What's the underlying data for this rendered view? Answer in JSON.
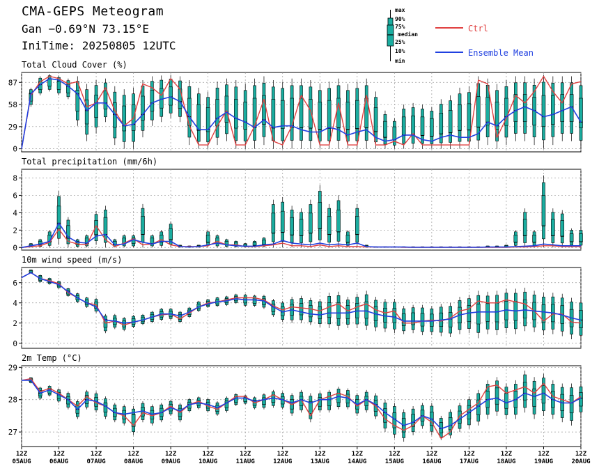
{
  "header": {
    "title": "CMA-GEPS Meteogram",
    "location": "Gan −0.69°N 73.15°E",
    "init_time": "IniTime: 20250805 12UTC"
  },
  "legend": {
    "box_labels": [
      "max",
      "90%",
      "75%",
      "median",
      "25%",
      "10%",
      "min"
    ],
    "ctrl_label": "Ctrl",
    "mean_label": "Ensemble Mean",
    "ctrl_color": "#e04040",
    "mean_color": "#2040e0",
    "box_color": "#1aada0"
  },
  "chart_data": [
    {
      "type": "line",
      "title": "Total Cloud Cover (%)",
      "yticks": [
        0,
        29,
        58,
        87
      ],
      "ylim": [
        -4,
        100
      ],
      "x": [
        "05-12Z",
        "05-18Z",
        "06-00Z",
        "06-06Z",
        "06-12Z",
        "06-18Z",
        "07-00Z",
        "07-06Z",
        "07-12Z",
        "07-18Z",
        "08-00Z",
        "08-06Z",
        "08-12Z",
        "08-18Z",
        "09-00Z",
        "09-06Z",
        "09-12Z",
        "09-18Z",
        "10-00Z",
        "10-06Z",
        "10-12Z",
        "10-18Z",
        "11-00Z",
        "11-06Z",
        "11-12Z",
        "11-18Z",
        "12-00Z",
        "12-06Z",
        "12-12Z",
        "12-18Z",
        "13-00Z",
        "13-06Z",
        "13-12Z",
        "13-18Z",
        "14-00Z",
        "14-06Z",
        "14-12Z",
        "14-18Z",
        "15-00Z",
        "15-06Z",
        "15-12Z",
        "15-18Z",
        "16-00Z",
        "16-06Z",
        "16-12Z",
        "16-18Z",
        "17-00Z",
        "17-06Z",
        "17-12Z",
        "17-18Z",
        "18-00Z",
        "18-06Z",
        "18-12Z",
        "18-18Z",
        "19-00Z",
        "19-06Z",
        "19-12Z",
        "19-18Z",
        "20-00Z",
        "20-06Z",
        "20-12Z"
      ],
      "series": [
        {
          "name": "Ctrl",
          "values": [
            0,
            70,
            88,
            95,
            92,
            85,
            88,
            55,
            60,
            80,
            50,
            30,
            40,
            85,
            80,
            70,
            92,
            78,
            30,
            5,
            5,
            30,
            50,
            5,
            5,
            30,
            65,
            10,
            5,
            30,
            70,
            50,
            5,
            5,
            60,
            5,
            5,
            70,
            5,
            5,
            10,
            5,
            20,
            5,
            5,
            5,
            5,
            5,
            5,
            90,
            85,
            15,
            40,
            70,
            60,
            75,
            95,
            75,
            60,
            85,
            88
          ]
        },
        {
          "name": "Ensemble Mean",
          "values": [
            0,
            72,
            84,
            92,
            90,
            82,
            72,
            50,
            60,
            60,
            45,
            30,
            32,
            45,
            60,
            65,
            68,
            62,
            42,
            25,
            25,
            40,
            48,
            40,
            35,
            28,
            38,
            28,
            30,
            30,
            25,
            22,
            22,
            28,
            25,
            18,
            22,
            25,
            15,
            10,
            12,
            18,
            18,
            12,
            10,
            15,
            18,
            15,
            15,
            20,
            35,
            30,
            42,
            50,
            55,
            50,
            42,
            45,
            50,
            55,
            35
          ]
        }
      ],
      "box_mins": [
        0,
        55,
        70,
        75,
        70,
        65,
        30,
        10,
        20,
        35,
        5,
        0,
        0,
        15,
        30,
        35,
        40,
        35,
        5,
        0,
        0,
        5,
        10,
        0,
        0,
        0,
        5,
        0,
        0,
        0,
        0,
        0,
        0,
        0,
        0,
        0,
        0,
        0,
        0,
        0,
        0,
        0,
        0,
        0,
        0,
        0,
        0,
        0,
        0,
        0,
        5,
        0,
        5,
        10,
        10,
        5,
        0,
        5,
        10,
        10,
        0
      ],
      "box_maxs": [
        0,
        80,
        95,
        98,
        96,
        92,
        95,
        85,
        90,
        92,
        82,
        78,
        80,
        90,
        95,
        96,
        97,
        95,
        90,
        80,
        75,
        88,
        92,
        90,
        85,
        92,
        95,
        90,
        88,
        92,
        92,
        90,
        85,
        88,
        92,
        85,
        88,
        92,
        75,
        50,
        40,
        58,
        60,
        58,
        55,
        65,
        70,
        80,
        82,
        95,
        92,
        85,
        90,
        95,
        95,
        92,
        97,
        95,
        95,
        95,
        92
      ]
    },
    {
      "type": "line",
      "title": "Total precipitation (mm/6h)",
      "yticks": [
        0,
        2,
        4,
        6,
        8
      ],
      "ylim": [
        -0.3,
        9.0
      ],
      "series": [
        {
          "name": "Ctrl",
          "values": [
            0,
            0.1,
            0.2,
            0.6,
            2.1,
            0.7,
            0.4,
            0.3,
            2.5,
            0.9,
            0.1,
            0.5,
            1.0,
            0.3,
            0.4,
            0.9,
            0.3,
            0.1,
            0.1,
            0.1,
            0.2,
            0.7,
            0.3,
            0.3,
            0.1,
            0.1,
            0.2,
            0.3,
            0.5,
            0.2,
            0.2,
            0.1,
            0.3,
            0.1,
            0.2,
            0.1,
            0.1,
            0.05,
            0.05,
            0.05,
            0.05,
            0.02,
            0.02,
            0.02,
            0.02,
            0.02,
            0.02,
            0.02,
            0.02,
            0.02,
            0.02,
            0.02,
            0.02,
            0.05,
            0.05,
            0.1,
            0.2,
            0.2,
            0.1,
            0.1,
            0.1
          ]
        },
        {
          "name": "Ensemble Mean",
          "values": [
            0,
            0.2,
            0.4,
            0.7,
            2.8,
            1.2,
            0.6,
            0.5,
            1.3,
            1.5,
            0.3,
            0.4,
            0.9,
            0.6,
            0.4,
            0.7,
            0.7,
            0.1,
            0.05,
            0.1,
            0.3,
            0.5,
            0.3,
            0.2,
            0.15,
            0.15,
            0.3,
            0.4,
            0.8,
            0.5,
            0.4,
            0.3,
            0.5,
            0.3,
            0.4,
            0.3,
            0.5,
            0.1,
            0.05,
            0.05,
            0.05,
            0.05,
            0.02,
            0.02,
            0.02,
            0.02,
            0.02,
            0.02,
            0.02,
            0.02,
            0.05,
            0.05,
            0.05,
            0.1,
            0.15,
            0.2,
            0.4,
            0.3,
            0.2,
            0.2,
            0.2
          ]
        }
      ],
      "box_mins": [
        0,
        0,
        0,
        0,
        0.3,
        0,
        0,
        0,
        0.3,
        0,
        0,
        0,
        0,
        0,
        0,
        0,
        0,
        0,
        0,
        0,
        0,
        0,
        0,
        0,
        0,
        0,
        0,
        0,
        0,
        0,
        0,
        0,
        0,
        0,
        0,
        0,
        0,
        0,
        0,
        0,
        0,
        0,
        0,
        0,
        0,
        0,
        0,
        0,
        0,
        0,
        0,
        0,
        0,
        0,
        0,
        0,
        0,
        0,
        0,
        0,
        0
      ],
      "box_maxs": [
        0,
        0.5,
        1.0,
        2.0,
        6.5,
        3.5,
        1.0,
        1.5,
        4.2,
        4.8,
        1.0,
        1.5,
        1.5,
        5.0,
        1.5,
        2.0,
        3.0,
        0.3,
        0.2,
        0.3,
        2.0,
        1.5,
        1.0,
        0.8,
        0.5,
        0.8,
        1.2,
        5.5,
        5.8,
        4.8,
        4.5,
        5.5,
        7.2,
        5.0,
        6.0,
        2.0,
        5.0,
        0.3,
        0.1,
        0.1,
        0.1,
        0.1,
        0.1,
        0.1,
        0.1,
        0.1,
        0.1,
        0.1,
        0.1,
        0.1,
        0.2,
        0.2,
        0.3,
        2.0,
        4.5,
        2.0,
        8.3,
        4.5,
        4.3,
        2.2,
        2.2
      ]
    },
    {
      "type": "line",
      "title": "10m wind speed (m/s)",
      "yticks": [
        0,
        2,
        4,
        6
      ],
      "ylim": [
        -0.5,
        7.5
      ],
      "series": [
        {
          "name": "Ctrl",
          "values": [
            6.5,
            7.0,
            6.4,
            6.2,
            5.9,
            5.0,
            4.5,
            4.0,
            3.8,
            2.0,
            2.2,
            1.8,
            2.1,
            2.3,
            2.6,
            2.8,
            2.9,
            2.4,
            3.0,
            3.6,
            4.0,
            4.1,
            4.3,
            4.5,
            4.5,
            4.5,
            4.3,
            3.7,
            3.3,
            3.6,
            3.5,
            3.4,
            3.2,
            3.6,
            3.9,
            3.2,
            3.6,
            3.9,
            3.3,
            3.0,
            3.2,
            2.0,
            2.0,
            2.2,
            2.3,
            2.2,
            2.5,
            3.2,
            3.4,
            4.2,
            4.0,
            4.0,
            4.3,
            4.1,
            3.9,
            3.2,
            2.2,
            2.9,
            2.9,
            2.1,
            2.0
          ]
        },
        {
          "name": "Ensemble Mean",
          "values": [
            6.5,
            7.0,
            6.4,
            6.1,
            5.8,
            5.1,
            4.5,
            4.0,
            3.6,
            2.3,
            2.2,
            2.0,
            2.1,
            2.3,
            2.6,
            2.9,
            2.9,
            2.7,
            3.1,
            3.6,
            3.9,
            4.1,
            4.2,
            4.4,
            4.3,
            4.3,
            4.2,
            3.6,
            3.1,
            3.3,
            3.1,
            2.9,
            2.8,
            3.0,
            3.0,
            3.0,
            3.2,
            3.2,
            2.9,
            2.7,
            2.6,
            2.2,
            2.2,
            2.2,
            2.2,
            2.3,
            2.4,
            2.8,
            3.0,
            3.1,
            3.1,
            3.1,
            3.3,
            3.2,
            3.3,
            3.2,
            3.1,
            3.0,
            2.8,
            2.5,
            2.3
          ]
        }
      ],
      "box_mins": [
        6.5,
        6.9,
        6.0,
        5.8,
        5.4,
        4.6,
        4.0,
        3.5,
        3.0,
        1.0,
        1.4,
        1.2,
        1.5,
        1.8,
        2.0,
        2.2,
        2.3,
        2.0,
        2.5,
        3.1,
        3.5,
        3.6,
        3.7,
        3.9,
        3.6,
        3.6,
        3.4,
        2.6,
        2.1,
        2.0,
        2.0,
        1.8,
        1.6,
        1.5,
        1.3,
        1.5,
        1.5,
        1.3,
        1.2,
        1.1,
        1.0,
        0.9,
        1.0,
        0.8,
        0.8,
        0.7,
        0.6,
        0.9,
        1.0,
        0.5,
        0.9,
        0.8,
        1.0,
        0.9,
        1.2,
        1.1,
        0.8,
        0.9,
        0.7,
        0.4,
        0.3
      ],
      "box_maxs": [
        6.5,
        7.3,
        6.8,
        6.5,
        6.2,
        5.5,
        5.0,
        4.6,
        4.5,
        2.9,
        2.9,
        2.6,
        2.8,
        2.9,
        3.2,
        3.5,
        3.5,
        3.2,
        3.6,
        4.2,
        4.4,
        4.6,
        4.7,
        4.9,
        4.9,
        4.8,
        4.8,
        4.4,
        4.2,
        4.6,
        4.7,
        4.5,
        4.4,
        5.0,
        5.1,
        4.6,
        4.9,
        5.2,
        4.6,
        4.4,
        4.4,
        3.7,
        3.8,
        3.8,
        3.7,
        3.9,
        4.0,
        4.6,
        4.8,
        5.2,
        5.1,
        5.2,
        5.4,
        5.4,
        5.5,
        5.2,
        5.0,
        5.0,
        4.9,
        4.5,
        4.4
      ]
    },
    {
      "type": "line",
      "title": "2m Temp (°C)",
      "yticks": [
        27,
        28,
        29
      ],
      "ylim": [
        26.55,
        29.05
      ],
      "series": [
        {
          "name": "Ctrl",
          "values": [
            28.6,
            28.65,
            28.25,
            28.35,
            28.2,
            28.0,
            27.8,
            28.1,
            27.9,
            27.8,
            27.6,
            27.5,
            27.2,
            27.6,
            27.5,
            27.6,
            27.8,
            27.6,
            27.85,
            27.95,
            27.8,
            27.7,
            27.9,
            28.1,
            28.1,
            27.9,
            28.0,
            28.15,
            28.0,
            27.85,
            28.0,
            27.5,
            28.0,
            28.1,
            28.2,
            28.1,
            27.8,
            28.0,
            27.8,
            27.4,
            27.2,
            27.05,
            27.2,
            27.5,
            27.3,
            26.8,
            27.0,
            27.5,
            27.7,
            27.9,
            28.4,
            28.45,
            28.2,
            28.3,
            28.4,
            28.2,
            28.5,
            28.1,
            28.0,
            27.9,
            28.1
          ]
        },
        {
          "name": "Ensemble Mean",
          "values": [
            28.6,
            28.6,
            28.2,
            28.3,
            28.15,
            28.0,
            27.7,
            28.0,
            27.95,
            27.8,
            27.6,
            27.55,
            27.6,
            27.65,
            27.55,
            27.6,
            27.75,
            27.65,
            27.85,
            27.9,
            27.85,
            27.75,
            27.9,
            28.05,
            28.05,
            27.95,
            28.0,
            28.05,
            28.0,
            27.9,
            28.0,
            27.9,
            28.0,
            28.0,
            28.1,
            28.05,
            27.85,
            28.0,
            27.85,
            27.6,
            27.4,
            27.2,
            27.3,
            27.5,
            27.4,
            27.1,
            27.2,
            27.4,
            27.6,
            27.8,
            28.0,
            28.05,
            27.9,
            28.0,
            28.2,
            28.1,
            28.2,
            28.0,
            27.9,
            27.9,
            28.05
          ]
        }
      ],
      "box_mins": [
        28.6,
        28.5,
        28.0,
        28.1,
        27.9,
        27.7,
        27.4,
        27.7,
        27.6,
        27.4,
        27.3,
        27.2,
        26.9,
        27.3,
        27.2,
        27.3,
        27.5,
        27.3,
        27.6,
        27.7,
        27.6,
        27.5,
        27.6,
        27.8,
        27.85,
        27.7,
        27.7,
        27.75,
        27.7,
        27.5,
        27.6,
        27.3,
        27.6,
        27.6,
        27.7,
        27.7,
        27.5,
        27.6,
        27.4,
        27.0,
        26.8,
        26.7,
        26.9,
        27.1,
        26.9,
        26.75,
        26.8,
        27.0,
        27.1,
        27.2,
        27.4,
        27.5,
        27.4,
        27.4,
        27.6,
        27.4,
        27.5,
        27.4,
        27.3,
        27.2,
        27.5
      ],
      "box_maxs": [
        28.6,
        28.7,
        28.4,
        28.45,
        28.35,
        28.25,
        28.0,
        28.3,
        28.25,
        28.1,
        27.9,
        27.85,
        27.8,
        27.95,
        27.85,
        27.9,
        28.0,
        27.9,
        28.05,
        28.1,
        28.05,
        27.95,
        28.1,
        28.2,
        28.15,
        28.1,
        28.2,
        28.3,
        28.25,
        28.2,
        28.3,
        28.2,
        28.25,
        28.3,
        28.4,
        28.35,
        28.2,
        28.3,
        28.2,
        28.0,
        27.9,
        27.7,
        27.8,
        27.9,
        27.9,
        27.5,
        27.7,
        27.9,
        28.1,
        28.3,
        28.6,
        28.7,
        28.5,
        28.6,
        28.9,
        28.7,
        28.8,
        28.6,
        28.5,
        28.5,
        28.5
      ]
    }
  ],
  "x_axis": {
    "labels": [
      {
        "top": "12Z",
        "bottom": "05AUG"
      },
      {
        "top": "12Z",
        "bottom": "06AUG"
      },
      {
        "top": "12Z",
        "bottom": "07AUG"
      },
      {
        "top": "12Z",
        "bottom": "08AUG"
      },
      {
        "top": "12Z",
        "bottom": "09AUG"
      },
      {
        "top": "12Z",
        "bottom": "10AUG"
      },
      {
        "top": "12Z",
        "bottom": "11AUG"
      },
      {
        "top": "12Z",
        "bottom": "12AUG"
      },
      {
        "top": "12Z",
        "bottom": "13AUG"
      },
      {
        "top": "12Z",
        "bottom": "14AUG"
      },
      {
        "top": "12Z",
        "bottom": "15AUG"
      },
      {
        "top": "12Z",
        "bottom": "16AUG"
      },
      {
        "top": "12Z",
        "bottom": "17AUG"
      },
      {
        "top": "12Z",
        "bottom": "18AUG"
      },
      {
        "top": "12Z",
        "bottom": "19AUG"
      },
      {
        "top": "12Z",
        "bottom": "20AUG"
      }
    ]
  }
}
